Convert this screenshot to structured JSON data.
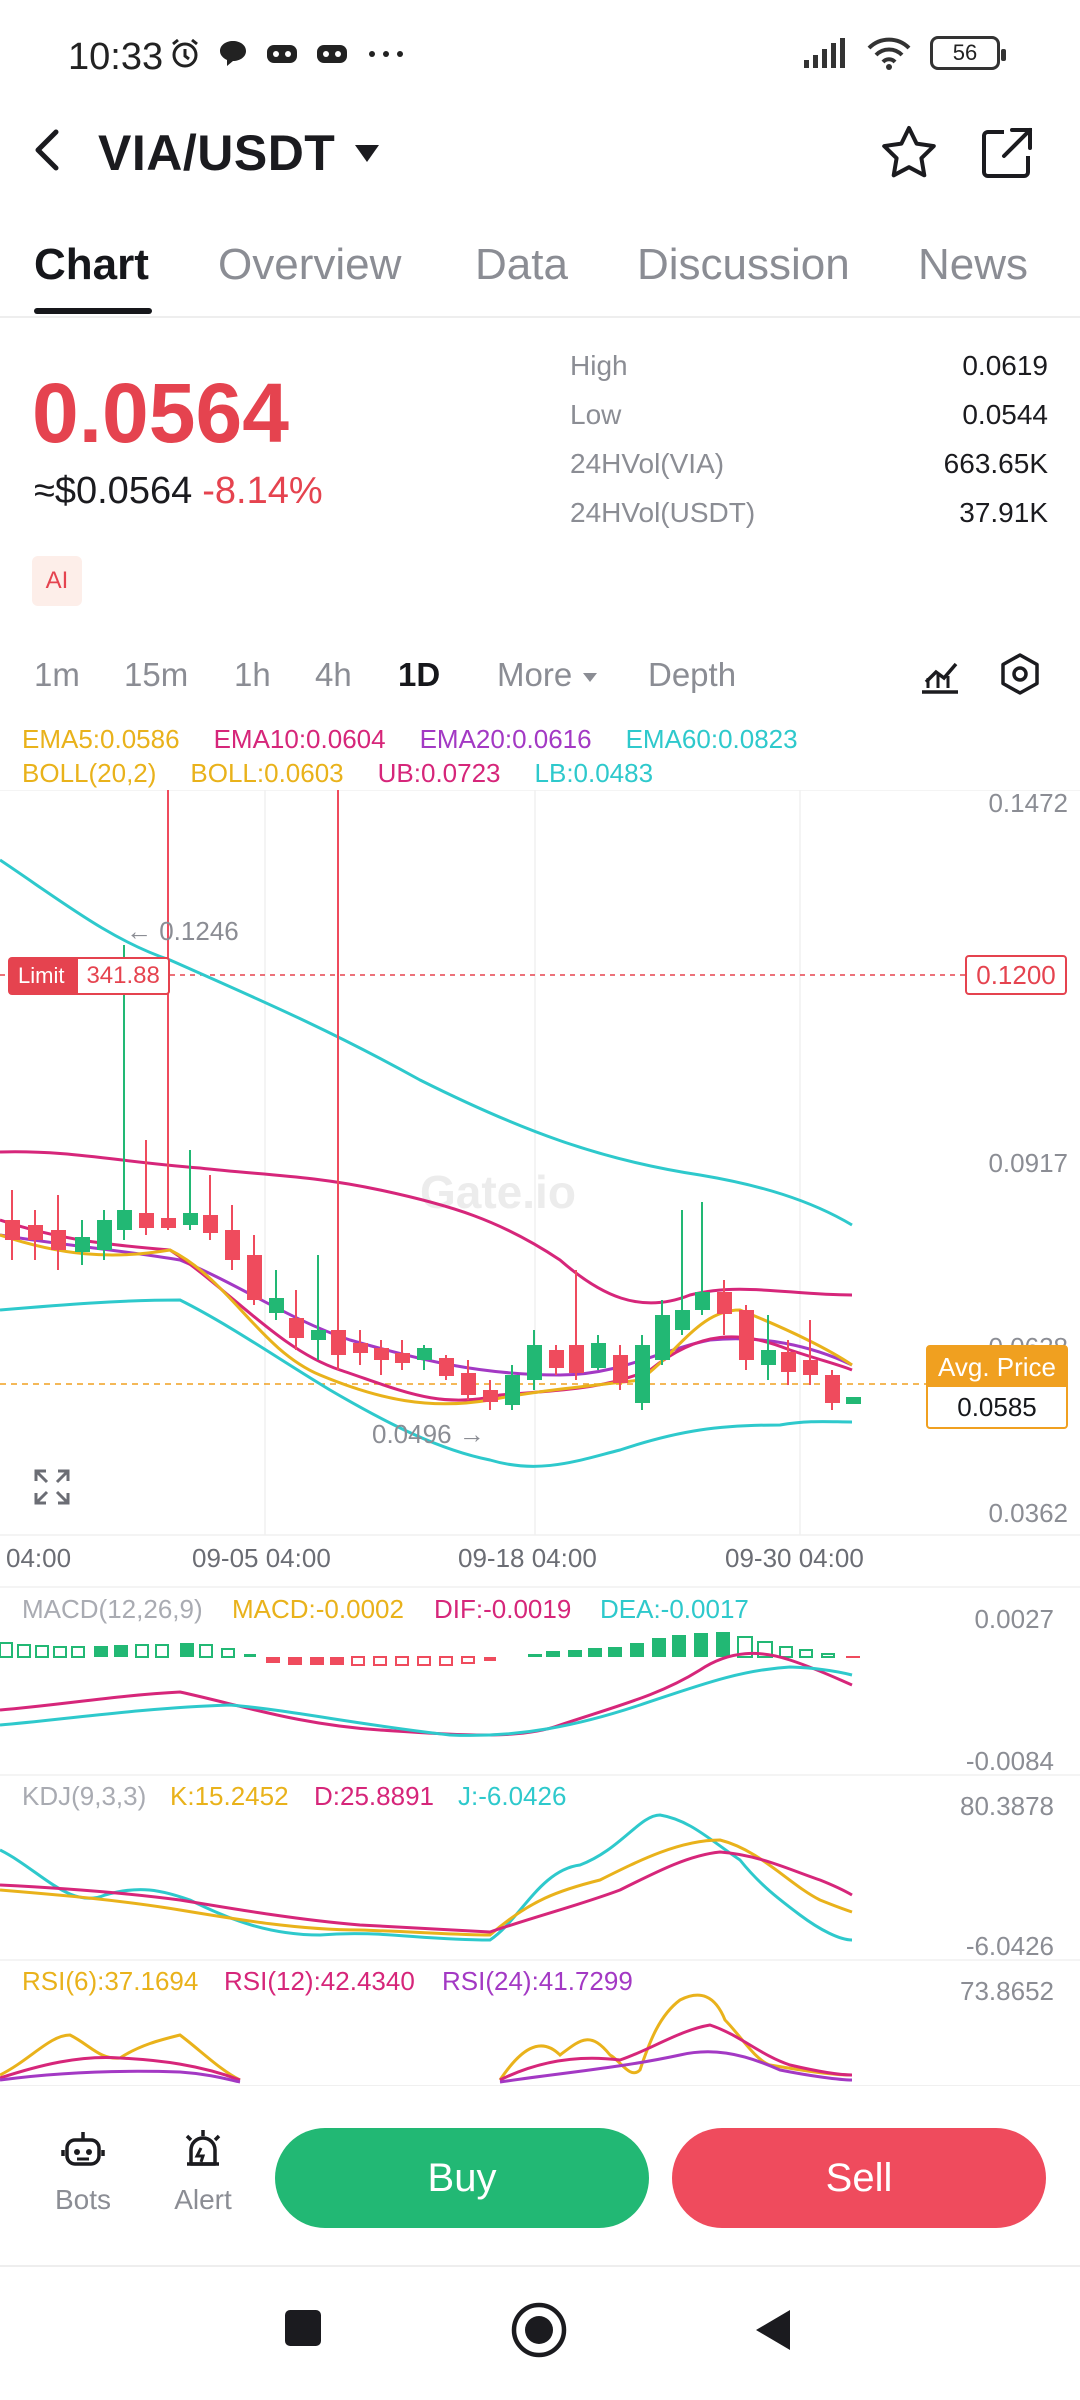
{
  "status_bar": {
    "time": "10:33",
    "battery": "56"
  },
  "header": {
    "pair": "VIA/USDT"
  },
  "tabs": [
    {
      "label": "Chart"
    },
    {
      "label": "Overview"
    },
    {
      "label": "Data"
    },
    {
      "label": "Discussion"
    },
    {
      "label": "News"
    }
  ],
  "ticker": {
    "price": "0.0564",
    "usd_approx": "≈$0.0564",
    "change_pct": "-8.14%",
    "ai_badge": "AI",
    "stats": [
      {
        "label": "High",
        "value": "0.0619"
      },
      {
        "label": "Low",
        "value": "0.0544"
      },
      {
        "label": "24HVol(VIA)",
        "value": "663.65K"
      },
      {
        "label": "24HVol(USDT)",
        "value": "37.91K"
      }
    ]
  },
  "intervals": [
    "1m",
    "15m",
    "1h",
    "4h",
    "1D",
    "More",
    "Depth"
  ],
  "active_interval": "1D",
  "indicators": {
    "ema5": "EMA5:0.0586",
    "ema10": "EMA10:0.0604",
    "ema20": "EMA20:0.0616",
    "ema60": "EMA60:0.0823",
    "boll": "BOLL(20,2)",
    "boll_val": "BOLL:0.0603",
    "ub": "UB:0.0723",
    "lb": "LB:0.0483"
  },
  "main_chart": {
    "y_labels": [
      "0.1472",
      "0.0917",
      "0.0628",
      "0.0362"
    ],
    "x_labels": [
      "04:00",
      "09-05 04:00",
      "09-18 04:00",
      "09-30 04:00"
    ],
    "high_marker": "← 0.1246",
    "low_marker": "0.0496 →",
    "limit_label": "Limit",
    "limit_value": "341.88",
    "limit_price": "0.1200",
    "avg_price_label": "Avg. Price",
    "avg_price_value": "0.0585",
    "watermark": "Gate.io"
  },
  "macd": {
    "title": "MACD(12,26,9)",
    "macd": "MACD:-0.0002",
    "dif": "DIF:-0.0019",
    "dea": "DEA:-0.0017",
    "y_top": "0.0027",
    "y_bottom": "-0.0084"
  },
  "kdj": {
    "title": "KDJ(9,3,3)",
    "k": "K:15.2452",
    "d": "D:25.8891",
    "j": "J:-6.0426",
    "y_top": "80.3878",
    "y_bottom": "-6.0426"
  },
  "rsi": {
    "rsi6": "RSI(6):37.1694",
    "rsi12": "RSI(12):42.4340",
    "rsi24": "RSI(24):41.7299",
    "y_top": "73.8652"
  },
  "bottom_bar": {
    "bots": "Bots",
    "alert": "Alert",
    "buy": "Buy",
    "sell": "Sell"
  },
  "colors": {
    "up": "#22b874",
    "down": "#ef4b5d",
    "ema5": "#e9b21b",
    "ema10": "#d6267a",
    "ema20": "#a339c4",
    "ema60": "#2ec9cc"
  }
}
